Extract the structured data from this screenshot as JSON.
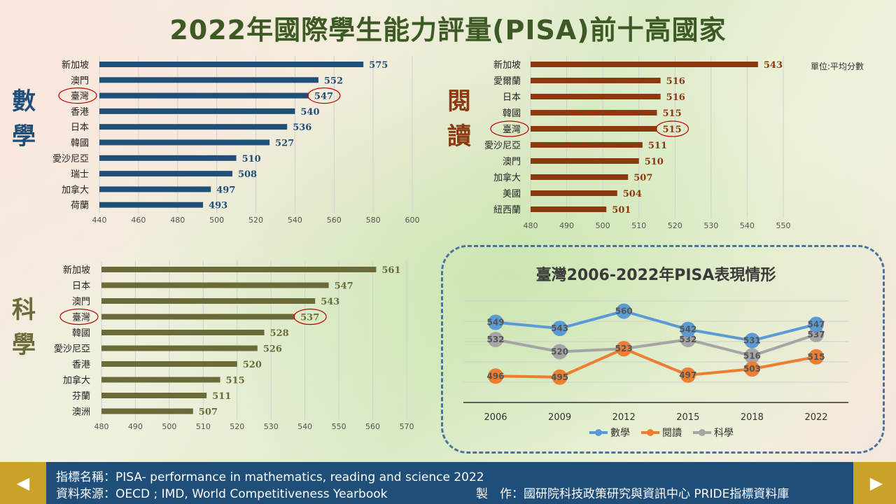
{
  "title": "2022年國際學生能力評量(PISA)前十高國家",
  "labels": {
    "math": "數學",
    "reading": "閱讀",
    "science": "科學"
  },
  "unit_label": "單位:平均分數",
  "colors": {
    "math": "#1f4e79",
    "reading": "#8b3a0f",
    "science": "#6b6b3a",
    "title": "#3d5a24",
    "line_math": "#5b9bd5",
    "line_reading": "#ed7d31",
    "line_science": "#a5a5a5",
    "highlight": "#c00000"
  },
  "chart_data": [
    {
      "type": "bar",
      "id": "math",
      "categories": [
        "新加坡",
        "澳門",
        "臺灣",
        "香港",
        "日本",
        "韓國",
        "愛沙尼亞",
        "瑞士",
        "加拿大",
        "荷蘭"
      ],
      "values": [
        575,
        552,
        547,
        540,
        536,
        527,
        510,
        508,
        497,
        493
      ],
      "highlight": "臺灣",
      "xlim": [
        440,
        600
      ],
      "xticks": [
        "440",
        "460",
        "480",
        "500",
        "520",
        "540",
        "560",
        "580",
        "600"
      ]
    },
    {
      "type": "bar",
      "id": "reading",
      "categories": [
        "新加坡",
        "愛爾蘭",
        "日本",
        "韓國",
        "臺灣",
        "愛沙尼亞",
        "澳門",
        "加拿大",
        "美國",
        "紐西蘭"
      ],
      "values": [
        543,
        516,
        516,
        515,
        515,
        511,
        510,
        507,
        504,
        501
      ],
      "highlight": "臺灣",
      "xlim": [
        480,
        550
      ],
      "xticks": [
        "480",
        "490",
        "500",
        "510",
        "520",
        "530",
        "540",
        "550"
      ]
    },
    {
      "type": "bar",
      "id": "science",
      "categories": [
        "新加坡",
        "日本",
        "澳門",
        "臺灣",
        "韓國",
        "愛沙尼亞",
        "香港",
        "加拿大",
        "芬蘭",
        "澳洲"
      ],
      "values": [
        561,
        547,
        543,
        537,
        528,
        526,
        520,
        515,
        511,
        507
      ],
      "highlight": "臺灣",
      "xlim": [
        480,
        570
      ],
      "xticks": [
        "480",
        "490",
        "500",
        "510",
        "520",
        "530",
        "540",
        "550",
        "560",
        "570"
      ]
    },
    {
      "type": "line",
      "id": "trend",
      "title": "臺灣2006-2022年PISA表現情形",
      "x": [
        "2006",
        "2009",
        "2012",
        "2015",
        "2018",
        "2022"
      ],
      "series": [
        {
          "name": "數學",
          "values": [
            549,
            543,
            560,
            542,
            531,
            547
          ]
        },
        {
          "name": "閱讀",
          "values": [
            496,
            495,
            523,
            497,
            503,
            515
          ]
        },
        {
          "name": "科學",
          "values": [
            532,
            520,
            523,
            532,
            516,
            537
          ]
        }
      ],
      "ylim": [
        470,
        570
      ],
      "legend": "bottom"
    }
  ],
  "footer": {
    "indicator": "指標名稱：PISA- performance in mathematics, reading and science 2022",
    "source": "資料來源：OECD ; IMD, World Competitiveness Yearbook",
    "producer": "製　作：國研院科技政策研究與資訊中心 PRIDE指標資料庫"
  },
  "nav": {
    "prev": "◀",
    "next": "▶"
  }
}
